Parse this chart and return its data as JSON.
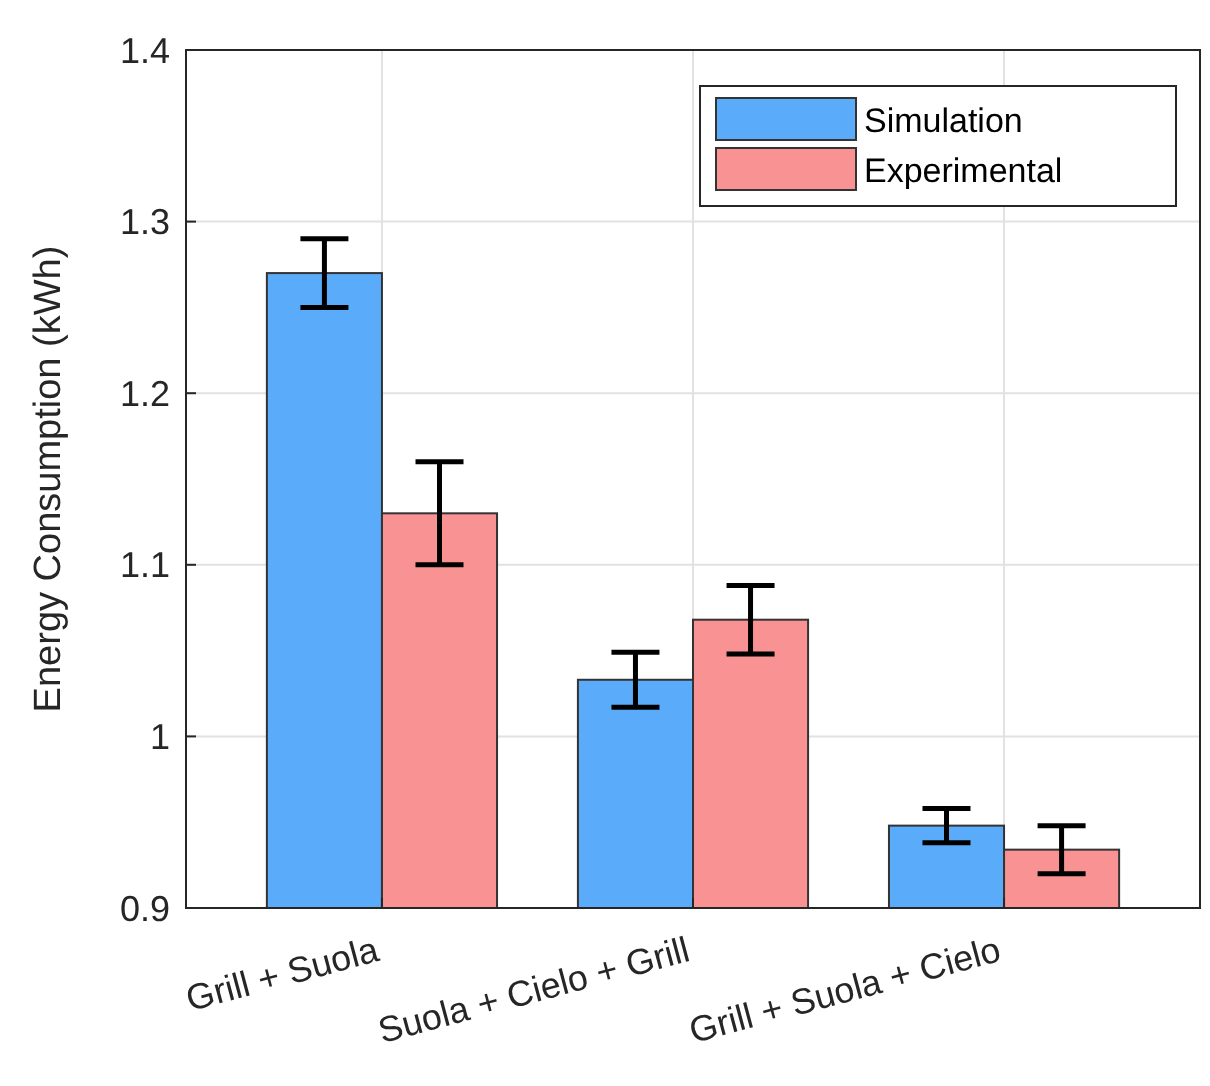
{
  "chart_data": {
    "type": "bar",
    "ylabel": "Energy Consumption (kWh)",
    "categories": [
      "Grill + Suola",
      "Suola + Cielo + Grill",
      "Grill + Suola + Cielo"
    ],
    "series": [
      {
        "name": "Simulation",
        "color": "#5aabf9",
        "values": [
          1.27,
          1.033,
          0.948
        ],
        "errors": [
          0.02,
          0.016,
          0.01
        ]
      },
      {
        "name": "Experimental",
        "color": "#f99393",
        "values": [
          1.13,
          1.068,
          0.934
        ],
        "errors": [
          0.03,
          0.02,
          0.014
        ]
      }
    ],
    "ylim": [
      0.9,
      1.4
    ],
    "yticks": [
      0.9,
      1,
      1.1,
      1.2,
      1.3,
      1.4
    ],
    "grid": true,
    "legend": "top right"
  }
}
